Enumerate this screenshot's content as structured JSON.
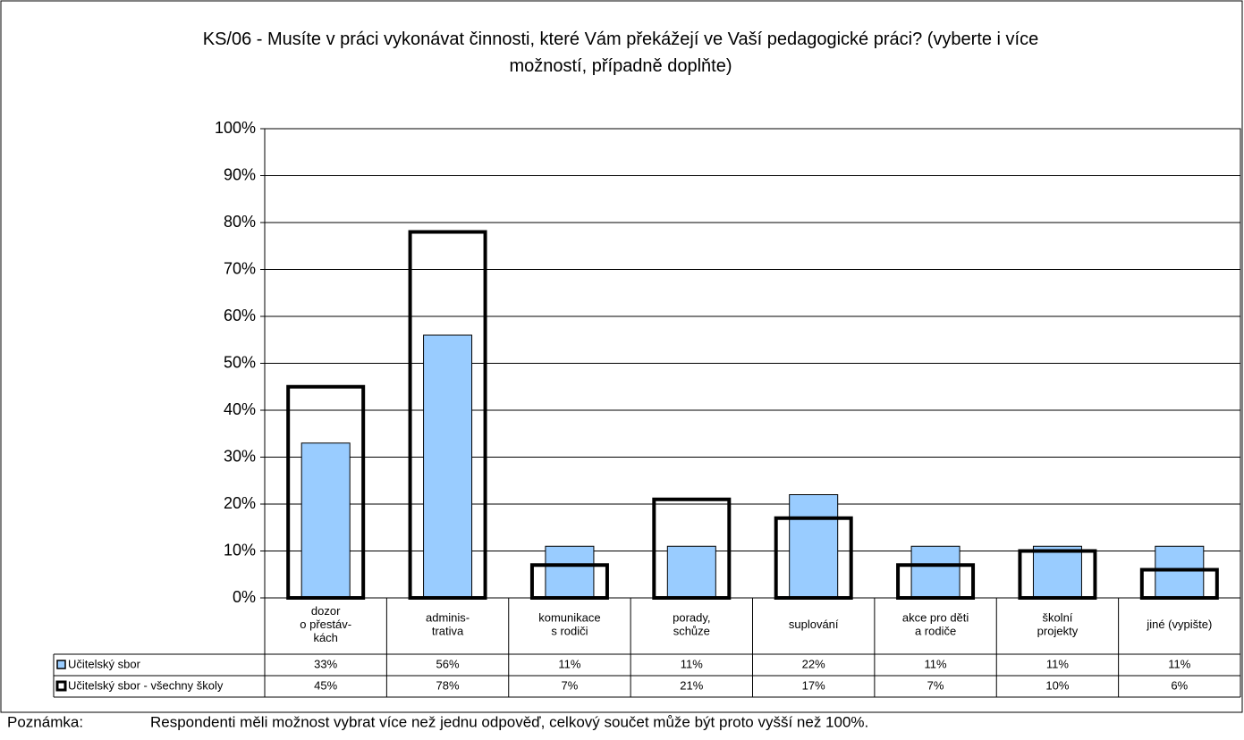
{
  "chart_data": {
    "type": "bar",
    "title": "KS/06 - Musíte v práci vykonávat činnosti, které Vám překážejí ve Vaší pedagogické práci? (vyberte i více možností, případně doplňte)",
    "categories": [
      "dozor\no přestáv-\nkách",
      "adminis-\ntrativa",
      "komunikace\ns rodiči",
      "porady,\nschůze",
      "suplování",
      "akce pro děti\na rodiče",
      "školní\nprojekty",
      "jiné (vypište)"
    ],
    "series": [
      {
        "name": "Učitelský sbor",
        "color": "#99ccff",
        "values": [
          33,
          56,
          11,
          11,
          22,
          11,
          11,
          11
        ],
        "value_labels": [
          "33%",
          "56%",
          "11%",
          "11%",
          "22%",
          "11%",
          "11%",
          "11%"
        ]
      },
      {
        "name": "Učitelský sbor - všechny školy",
        "color": "#000000",
        "values": [
          45,
          78,
          7,
          21,
          17,
          7,
          10,
          6
        ],
        "value_labels": [
          "45%",
          "78%",
          "7%",
          "21%",
          "17%",
          "7%",
          "10%",
          "6%"
        ]
      }
    ],
    "ylim": [
      0,
      100
    ],
    "yticks": [
      {
        "value": 0,
        "label": "0%"
      },
      {
        "value": 10,
        "label": "10%"
      },
      {
        "value": 20,
        "label": "20%"
      },
      {
        "value": 30,
        "label": "30%"
      },
      {
        "value": 40,
        "label": "40%"
      },
      {
        "value": 50,
        "label": "50%"
      },
      {
        "value": 60,
        "label": "60%"
      },
      {
        "value": 70,
        "label": "70%"
      },
      {
        "value": 80,
        "label": "80%"
      },
      {
        "value": 90,
        "label": "90%"
      },
      {
        "value": 100,
        "label": "100%"
      }
    ],
    "grid": true,
    "note": {
      "label": "Poznámka:",
      "text": "Respondenti měli možnost vybrat více než jednu odpověď, celkový součet může být proto vyšší než 100%."
    }
  }
}
